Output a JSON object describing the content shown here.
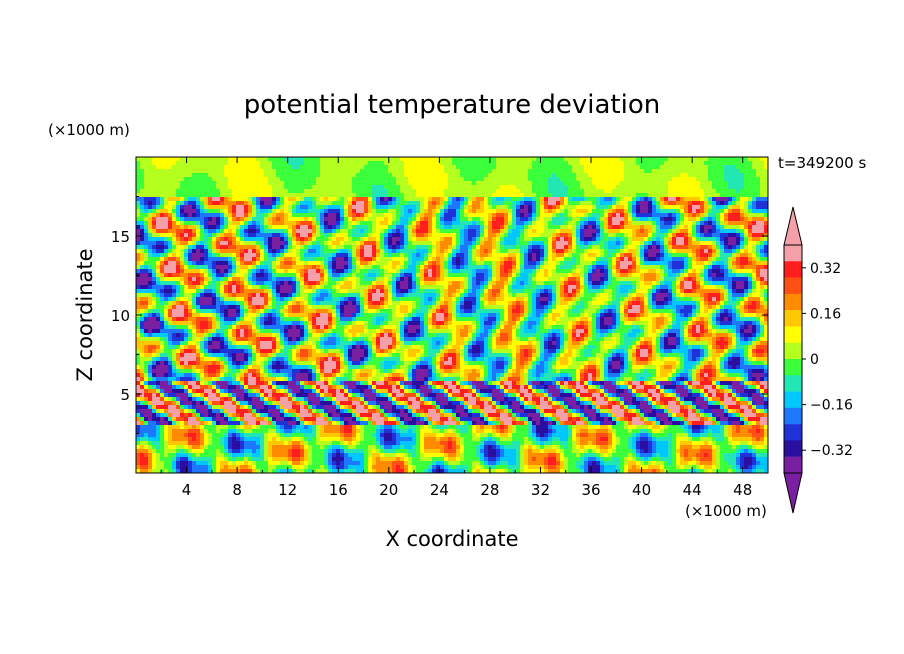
{
  "chart_data": {
    "type": "heatmap",
    "title": "potential temperature deviation",
    "xlabel": "X coordinate",
    "ylabel": "Z coordinate",
    "x_unit": "(×1000 m)",
    "y_unit": "(×1000 m)",
    "time_label": "t=349200 s",
    "xlim": [
      0,
      50
    ],
    "ylim": [
      0,
      20
    ],
    "x_ticks": [
      "4",
      "8",
      "12",
      "16",
      "20",
      "24",
      "28",
      "32",
      "36",
      "40",
      "44",
      "48"
    ],
    "x_tick_values": [
      4,
      8,
      12,
      16,
      20,
      24,
      28,
      32,
      36,
      40,
      44,
      48
    ],
    "y_ticks": [
      "5",
      "10",
      "15"
    ],
    "y_tick_values": [
      5,
      10,
      15
    ],
    "colorbar": {
      "levels": [
        -0.4,
        -0.36,
        -0.32,
        -0.28,
        -0.24,
        -0.2,
        -0.16,
        -0.12,
        -0.08,
        -0.04,
        0,
        0.04,
        0.08,
        0.12,
        0.16,
        0.2,
        0.24,
        0.28,
        0.32,
        0.36,
        0.4
      ],
      "tick_labels": [
        "0.32",
        "0.16",
        "0",
        "−0.16",
        "−0.32"
      ],
      "tick_values": [
        0.32,
        0.16,
        0,
        -0.16,
        -0.32
      ],
      "colors": [
        "#7b1fa2",
        "#2a0ea0",
        "#1e32d8",
        "#1e78ff",
        "#00c8ff",
        "#22e6b4",
        "#3cff3c",
        "#b4ff1e",
        "#ffff00",
        "#ffc800",
        "#ff8c00",
        "#ff5014",
        "#ff1e1e",
        "#f5a0a8"
      ],
      "under_color": "#7b1fa2",
      "over_color": "#f5a0a8"
    }
  }
}
